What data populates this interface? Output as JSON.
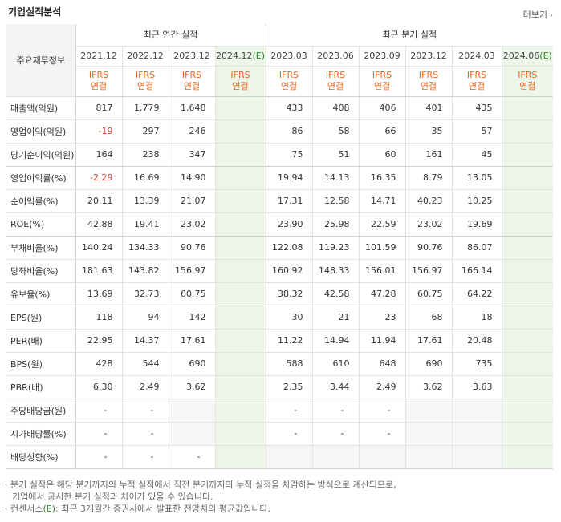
{
  "header": {
    "title": "기업실적분석",
    "more_label": "더보기"
  },
  "table": {
    "corner_label": "주요재무정보",
    "group_annual": "최근 연간 실적",
    "group_quarter": "최근 분기 실적",
    "annual_periods": [
      "2021.12",
      "2022.12",
      "2023.12",
      "2024.12"
    ],
    "annual_estimate_suffix": "(E)",
    "quarter_periods": [
      "2023.03",
      "2023.06",
      "2023.09",
      "2023.12",
      "2024.03",
      "2024.06"
    ],
    "quarter_estimate_suffix": "(E)",
    "ifrs_top": "IFRS",
    "ifrs_bottom": "연결",
    "rows": [
      {
        "label": "매출액(억원)",
        "values": [
          "817",
          "1,779",
          "1,648",
          "",
          "433",
          "408",
          "406",
          "401",
          "435",
          ""
        ]
      },
      {
        "label": "영업이익(억원)",
        "values": [
          "-19",
          "297",
          "246",
          "",
          "86",
          "58",
          "66",
          "35",
          "57",
          ""
        ]
      },
      {
        "label": "당기순이익(억원)",
        "values": [
          "164",
          "238",
          "347",
          "",
          "75",
          "51",
          "60",
          "161",
          "45",
          ""
        ]
      },
      {
        "label": "영업이익률(%)",
        "values": [
          "-2.29",
          "16.69",
          "14.90",
          "",
          "19.94",
          "14.13",
          "16.35",
          "8.79",
          "13.05",
          ""
        ]
      },
      {
        "label": "순이익률(%)",
        "values": [
          "20.11",
          "13.39",
          "21.07",
          "",
          "17.31",
          "12.58",
          "14.71",
          "40.23",
          "10.25",
          ""
        ]
      },
      {
        "label": "ROE(%)",
        "values": [
          "42.88",
          "19.41",
          "23.02",
          "",
          "23.90",
          "25.98",
          "22.59",
          "23.02",
          "19.69",
          ""
        ]
      },
      {
        "label": "부채비율(%)",
        "values": [
          "140.24",
          "134.33",
          "90.76",
          "",
          "122.08",
          "119.23",
          "101.59",
          "90.76",
          "86.07",
          ""
        ]
      },
      {
        "label": "당좌비율(%)",
        "values": [
          "181.63",
          "143.82",
          "156.97",
          "",
          "160.92",
          "148.33",
          "156.01",
          "156.97",
          "166.14",
          ""
        ]
      },
      {
        "label": "유보율(%)",
        "values": [
          "13.69",
          "32.73",
          "60.75",
          "",
          "38.32",
          "42.58",
          "47.28",
          "60.75",
          "64.22",
          ""
        ]
      },
      {
        "label": "EPS(원)",
        "values": [
          "118",
          "94",
          "142",
          "",
          "30",
          "21",
          "23",
          "68",
          "18",
          ""
        ]
      },
      {
        "label": "PER(배)",
        "values": [
          "22.95",
          "14.37",
          "17.61",
          "",
          "11.22",
          "14.94",
          "11.94",
          "17.61",
          "20.48",
          ""
        ]
      },
      {
        "label": "BPS(원)",
        "values": [
          "428",
          "544",
          "690",
          "",
          "588",
          "610",
          "648",
          "690",
          "735",
          ""
        ]
      },
      {
        "label": "PBR(배)",
        "values": [
          "6.30",
          "2.49",
          "3.62",
          "",
          "2.35",
          "3.44",
          "2.49",
          "3.62",
          "3.63",
          ""
        ]
      },
      {
        "label": "주당배당금(원)",
        "values": [
          "-",
          "-",
          "",
          "",
          "-",
          "-",
          "-",
          "",
          "",
          ""
        ]
      },
      {
        "label": "시가배당률(%)",
        "values": [
          "-",
          "-",
          "",
          "",
          "-",
          "-",
          "-",
          "",
          "",
          ""
        ]
      },
      {
        "label": "배당성향(%)",
        "values": [
          "-",
          "-",
          "-",
          "",
          "",
          "",
          "",
          "",
          "",
          ""
        ]
      }
    ]
  },
  "notes": {
    "line1": "· 분기 실적은 해당 분기까지의 누적 실적에서 직전 분기까지의 누적 실적을 차감하는 방식으로 계산되므로,",
    "line2": "기업에서 공시한 분기 실적과 차이가 있을 수 있습니다.",
    "line3_prefix": "· 컨센서스",
    "line3_e": "(E)",
    "line3_rest": ": 최근 3개월간 증권사에서 발표한 전망치의 평균값입니다."
  },
  "colors": {
    "ifrs": "#e8651d",
    "negative": "#d23c2b",
    "estimate": "#2a8a2a",
    "estimate_bg": "#eef6ea"
  }
}
